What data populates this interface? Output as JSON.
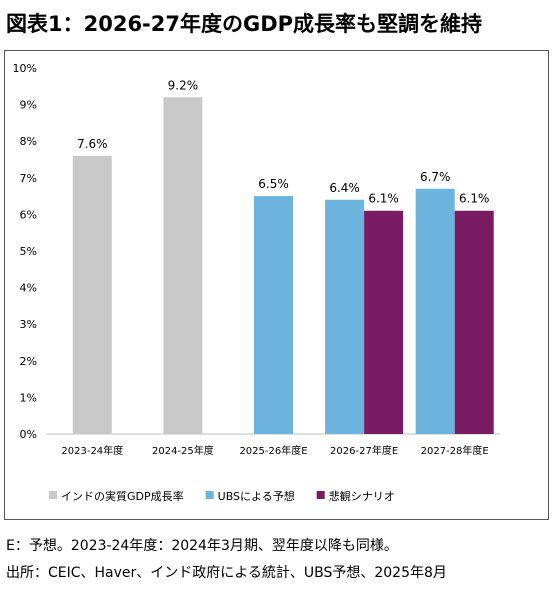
{
  "title": "図表1：2026-27年度のGDP成長率も堅調を維持",
  "notes": {
    "line1": "E：予想。2023-24年度：2024年3月期、翌年度以降も同様。",
    "line2": "出所：CEIC、Haver、インド政府による統計、UBS予想、2025年8月"
  },
  "chart_data": {
    "type": "bar",
    "ylim": [
      0,
      10
    ],
    "y_ticks": [
      "0%",
      "1%",
      "2%",
      "3%",
      "4%",
      "5%",
      "6%",
      "7%",
      "8%",
      "9%",
      "10%"
    ],
    "grid": false,
    "legend_position": "bottom",
    "categories": [
      "2023-24年度",
      "2024-25年度",
      "2025-26年度E",
      "2026-27年度E",
      "2027-28年度E"
    ],
    "series": [
      {
        "name": "インドの実質GDP成長率",
        "color": "#c9c9c9",
        "values": [
          7.6,
          9.2,
          null,
          null,
          null
        ],
        "labels": [
          "7.6%",
          "9.2%",
          null,
          null,
          null
        ]
      },
      {
        "name": "UBSによる予想",
        "color": "#6cb4de",
        "values": [
          null,
          null,
          6.5,
          6.4,
          6.7
        ],
        "labels": [
          null,
          null,
          "6.5%",
          "6.4%",
          "6.7%"
        ]
      },
      {
        "name": "悲観シナリオ",
        "color": "#7a1c64",
        "values": [
          null,
          null,
          null,
          6.1,
          6.1
        ],
        "labels": [
          null,
          null,
          null,
          "6.1%",
          "6.1%"
        ]
      }
    ]
  }
}
